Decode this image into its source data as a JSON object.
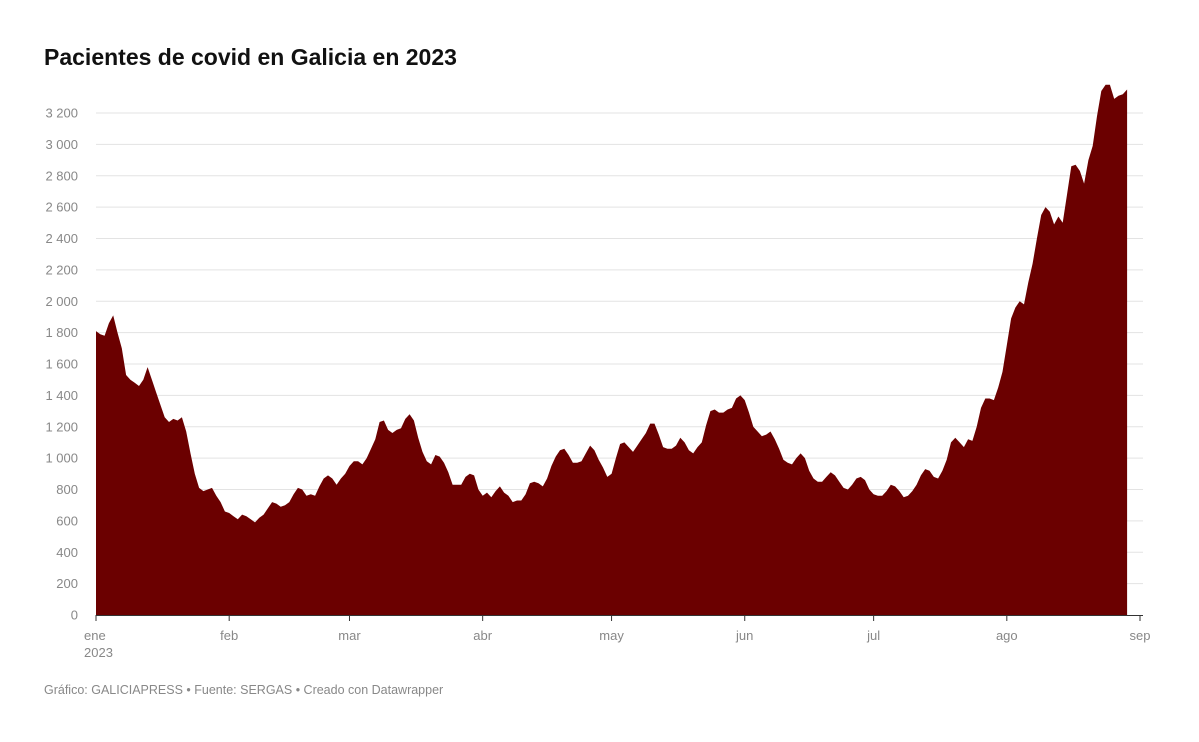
{
  "chart_data": {
    "type": "area",
    "title": "Pacientes de covid en Galicia en 2023",
    "xlabel": "",
    "ylabel": "",
    "ylim": [
      0,
      3200
    ],
    "grid": true,
    "color": "#6b0000",
    "y_ticks": [
      0,
      200,
      400,
      600,
      800,
      1000,
      1200,
      1400,
      1600,
      1800,
      2000,
      2200,
      2400,
      2600,
      2800,
      3000,
      3200
    ],
    "y_tick_labels": [
      "0",
      "200",
      "400",
      "600",
      "800",
      "1 000",
      "1 200",
      "1 400",
      "1 600",
      "1 800",
      "2 000",
      "2 200",
      "2 400",
      "2 600",
      "2 800",
      "3 000",
      "3 200"
    ],
    "x_ticks": [
      {
        "date": "2023-01-01",
        "label": "ene",
        "sublabel": "2023"
      },
      {
        "date": "2023-02-01",
        "label": "feb"
      },
      {
        "date": "2023-03-01",
        "label": "mar"
      },
      {
        "date": "2023-04-01",
        "label": "abr"
      },
      {
        "date": "2023-05-01",
        "label": "may"
      },
      {
        "date": "2023-06-01",
        "label": "jun"
      },
      {
        "date": "2023-07-01",
        "label": "jul"
      },
      {
        "date": "2023-08-01",
        "label": "ago"
      },
      {
        "date": "2023-09-01",
        "label": "sep"
      }
    ],
    "start_date": "2023-01-01",
    "daily_values": [
      1810,
      1790,
      1780,
      1860,
      1910,
      1800,
      1700,
      1530,
      1500,
      1480,
      1460,
      1500,
      1580,
      1500,
      1420,
      1340,
      1260,
      1230,
      1250,
      1240,
      1260,
      1170,
      1030,
      900,
      810,
      790,
      800,
      810,
      760,
      720,
      660,
      650,
      630,
      610,
      640,
      630,
      610,
      590,
      620,
      640,
      680,
      720,
      710,
      690,
      700,
      720,
      770,
      810,
      800,
      760,
      770,
      760,
      820,
      870,
      890,
      870,
      830,
      870,
      900,
      950,
      980,
      980,
      960,
      1000,
      1060,
      1120,
      1230,
      1240,
      1180,
      1160,
      1180,
      1190,
      1250,
      1280,
      1240,
      1130,
      1040,
      980,
      960,
      1020,
      1010,
      970,
      910,
      830,
      830,
      830,
      880,
      900,
      890,
      800,
      760,
      780,
      750,
      790,
      820,
      780,
      760,
      720,
      730,
      730,
      770,
      840,
      850,
      840,
      820,
      870,
      950,
      1010,
      1050,
      1060,
      1020,
      970,
      970,
      980,
      1030,
      1080,
      1050,
      990,
      940,
      880,
      900,
      1000,
      1090,
      1100,
      1070,
      1040,
      1080,
      1120,
      1160,
      1220,
      1220,
      1150,
      1070,
      1060,
      1060,
      1080,
      1130,
      1100,
      1050,
      1030,
      1070,
      1100,
      1210,
      1300,
      1310,
      1290,
      1290,
      1310,
      1320,
      1380,
      1400,
      1370,
      1290,
      1200,
      1170,
      1140,
      1150,
      1170,
      1120,
      1060,
      990,
      970,
      960,
      1000,
      1030,
      1000,
      920,
      870,
      850,
      850,
      880,
      910,
      890,
      850,
      810,
      800,
      830,
      870,
      880,
      860,
      800,
      770,
      760,
      760,
      790,
      830,
      820,
      790,
      750,
      760,
      790,
      830,
      890,
      930,
      920,
      880,
      870,
      920,
      990,
      1100,
      1130,
      1100,
      1070,
      1120,
      1110,
      1200,
      1320,
      1380,
      1380,
      1370,
      1450,
      1550,
      1720,
      1890,
      1960,
      2000,
      1980,
      2120,
      2240,
      2400,
      2550,
      2600,
      2570,
      2490,
      2540,
      2500,
      2680,
      2860,
      2870,
      2830,
      2750,
      2900,
      2990,
      3180,
      3340,
      3380,
      3380,
      3290,
      3310,
      3320,
      3350
    ]
  },
  "footer": "Gráfico: GALICIAPRESS • Fuente: SERGAS • Creado con Datawrapper"
}
